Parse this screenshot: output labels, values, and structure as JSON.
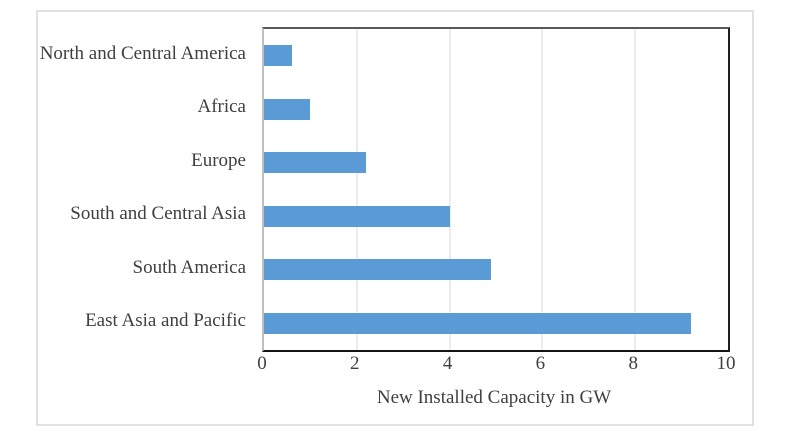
{
  "chart_data": {
    "type": "bar",
    "orientation": "horizontal",
    "title": "",
    "categories": [
      "North and Central America",
      "Africa",
      "Europe",
      "South and Central Asia",
      "South America",
      "East Asia and Pacific"
    ],
    "values": [
      0.6,
      1.0,
      2.2,
      4.0,
      4.9,
      9.2
    ],
    "xlabel": "New Installed Capacity in GW",
    "ylabel": "",
    "xlim": [
      0,
      10
    ],
    "x_ticks": [
      0,
      2,
      4,
      6,
      8,
      10
    ],
    "x_tick_labels": [
      "0",
      "2",
      "4",
      "6",
      "8",
      "10"
    ],
    "grid": "vertical-gridlines-on",
    "legend": "none",
    "colors": {
      "bar": "#5B9BD5",
      "text": "#3F3F3F",
      "gridline": "#D9D9D9",
      "axis_line_left": "#BFBFBF",
      "plot_border_top": "#595959",
      "plot_border_dark": "#1F1F1F",
      "frame_border": "#E1E1E1",
      "background": "#FFFFFF"
    }
  }
}
